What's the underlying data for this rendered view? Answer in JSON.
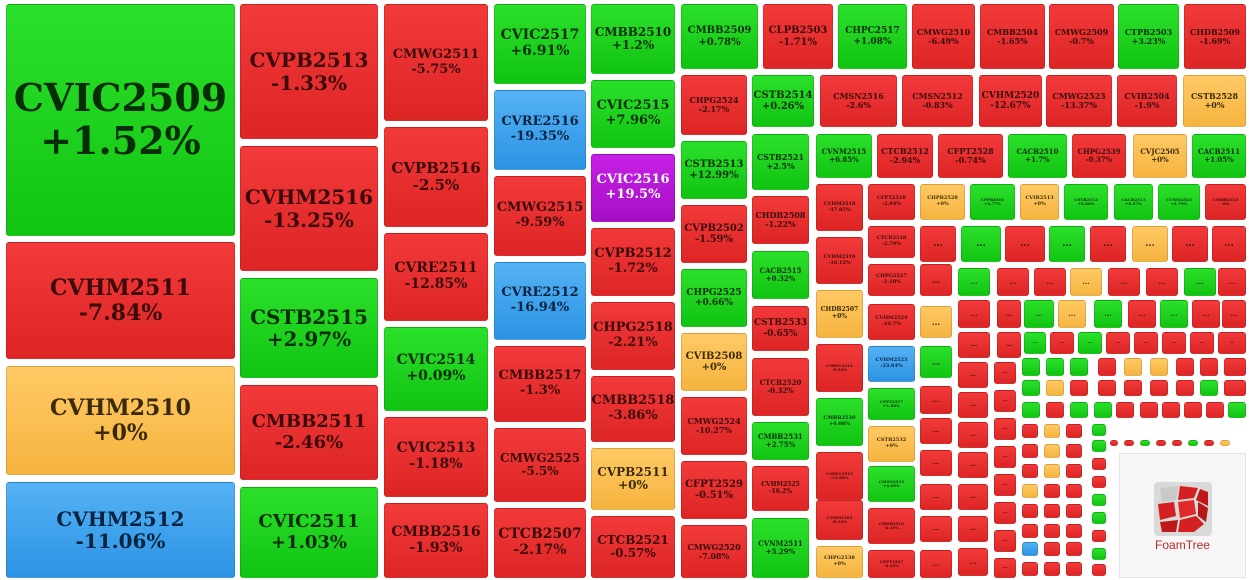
{
  "logo": {
    "text": "FoamTree"
  },
  "ellipsis": "...",
  "colors": {
    "red": "#e33030",
    "green": "#1ad01a",
    "yellow": "#fbbf52",
    "blue": "#3aa2ec",
    "purple": "#b818d6"
  },
  "cells": [
    {
      "code": "CVIC2509",
      "change": "+1.52%",
      "color": "green"
    },
    {
      "code": "CVHM2511",
      "change": "-7.84%",
      "color": "red"
    },
    {
      "code": "CVHM2510",
      "change": "+0%",
      "color": "yellow"
    },
    {
      "code": "CVHM2512",
      "change": "-11.06%",
      "color": "blue"
    },
    {
      "code": "CVPB2513",
      "change": "-1.33%",
      "color": "red"
    },
    {
      "code": "CVHM2516",
      "change": "-13.25%",
      "color": "red"
    },
    {
      "code": "CSTB2515",
      "change": "+2.97%",
      "color": "green"
    },
    {
      "code": "CMBB2511",
      "change": "-2.46%",
      "color": "red"
    },
    {
      "code": "CVIC2511",
      "change": "+1.03%",
      "color": "green"
    },
    {
      "code": "CMWG2511",
      "change": "-5.75%",
      "color": "red"
    },
    {
      "code": "CVPB2516",
      "change": "-2.5%",
      "color": "red"
    },
    {
      "code": "CVRE2511",
      "change": "-12.85%",
      "color": "red"
    },
    {
      "code": "CVIC2514",
      "change": "+0.09%",
      "color": "green"
    },
    {
      "code": "CVIC2513",
      "change": "-1.18%",
      "color": "red"
    },
    {
      "code": "CMBB2516",
      "change": "-1.93%",
      "color": "red"
    },
    {
      "code": "CVIC2517",
      "change": "+6.91%",
      "color": "green"
    },
    {
      "code": "CVRE2516",
      "change": "-19.35%",
      "color": "blue"
    },
    {
      "code": "CMWG2515",
      "change": "-9.59%",
      "color": "red"
    },
    {
      "code": "CVRE2512",
      "change": "-16.94%",
      "color": "blue"
    },
    {
      "code": "CMBB2517",
      "change": "-1.3%",
      "color": "red"
    },
    {
      "code": "CMWG2525",
      "change": "-5.5%",
      "color": "red"
    },
    {
      "code": "CTCB2507",
      "change": "-2.17%",
      "color": "red"
    },
    {
      "code": "CMBB2510",
      "change": "+1.2%",
      "color": "green"
    },
    {
      "code": "CVIC2515",
      "change": "+7.96%",
      "color": "green"
    },
    {
      "code": "CVIC2516",
      "change": "+19.5%",
      "color": "purple"
    },
    {
      "code": "CVPB2512",
      "change": "-1.72%",
      "color": "red"
    },
    {
      "code": "CHPG2518",
      "change": "-2.21%",
      "color": "red"
    },
    {
      "code": "CMBB2518",
      "change": "-3.86%",
      "color": "red"
    },
    {
      "code": "CVPB2511",
      "change": "+0%",
      "color": "yellow"
    },
    {
      "code": "CTCB2521",
      "change": "-0.57%",
      "color": "red"
    },
    {
      "code": "CMBB2509",
      "change": "+0.78%",
      "color": "green"
    },
    {
      "code": "CHPG2524",
      "change": "-2.17%",
      "color": "red"
    },
    {
      "code": "CSTB2513",
      "change": "+12.99%",
      "color": "green"
    },
    {
      "code": "CVPB2502",
      "change": "-1.59%",
      "color": "red"
    },
    {
      "code": "CHPG2525",
      "change": "+0.66%",
      "color": "green"
    },
    {
      "code": "CVIB2508",
      "change": "+0%",
      "color": "yellow"
    },
    {
      "code": "CMWG2524",
      "change": "-10.27%",
      "color": "red"
    },
    {
      "code": "CFPT2529",
      "change": "-0.51%",
      "color": "red"
    },
    {
      "code": "CMWG2520",
      "change": "-7.08%",
      "color": "red"
    },
    {
      "code": "CLPB2503",
      "change": "-1.71%",
      "color": "red"
    },
    {
      "code": "CHPC2517",
      "change": "+1.08%",
      "color": "green"
    },
    {
      "code": "CMWG2510",
      "change": "-6.49%",
      "color": "red"
    },
    {
      "code": "CMBB2504",
      "change": "-1.65%",
      "color": "red"
    },
    {
      "code": "CMWG2509",
      "change": "-0.7%",
      "color": "red"
    },
    {
      "code": "CTPB2503",
      "change": "+3.23%",
      "color": "green"
    },
    {
      "code": "CHDB2509",
      "change": "-1.69%",
      "color": "red"
    },
    {
      "code": "CSTB2514",
      "change": "+0.26%",
      "color": "green"
    },
    {
      "code": "CMSN2516",
      "change": "-2.6%",
      "color": "red"
    },
    {
      "code": "CMSN2512",
      "change": "-0.83%",
      "color": "red"
    },
    {
      "code": "CVHM2520",
      "change": "-12.67%",
      "color": "red"
    },
    {
      "code": "CMWG2523",
      "change": "-13.37%",
      "color": "red"
    },
    {
      "code": "CVIB2504",
      "change": "-1.9%",
      "color": "red"
    },
    {
      "code": "CSTB2528",
      "change": "+0%",
      "color": "yellow"
    },
    {
      "code": "CSTB2521",
      "change": "+2.5%",
      "color": "green"
    },
    {
      "code": "CVNM2515",
      "change": "+6.85%",
      "color": "green"
    },
    {
      "code": "CTCB2512",
      "change": "-2.94%",
      "color": "red"
    },
    {
      "code": "CFPT2528",
      "change": "-0.74%",
      "color": "red"
    },
    {
      "code": "CACB2510",
      "change": "+1.7%",
      "color": "green"
    },
    {
      "code": "CHPG2539",
      "change": "-0.37%",
      "color": "red"
    },
    {
      "code": "CVJC2505",
      "change": "+0%",
      "color": "yellow"
    },
    {
      "code": "CACB2511",
      "change": "+1.05%",
      "color": "green"
    },
    {
      "code": "CHDB2508",
      "change": "-1.22%",
      "color": "red"
    },
    {
      "code": "CVHM2518",
      "change": "-17.85%",
      "color": "red"
    },
    {
      "code": "CFPT2518",
      "change": "-2.94%",
      "color": "red"
    },
    {
      "code": "CHPB2528",
      "change": "+0%",
      "color": "yellow"
    },
    {
      "code": "CFPB2501",
      "change": "+2.77%",
      "color": "green"
    },
    {
      "code": "CVIB2513",
      "change": "+0%",
      "color": "yellow"
    },
    {
      "code": "CSTB2512",
      "change": "+5.66%",
      "color": "green"
    },
    {
      "code": "CACB2513",
      "change": "+6.57%",
      "color": "green"
    },
    {
      "code": "CVNM2523",
      "change": "+4.79%",
      "color": "green"
    },
    {
      "code": "CMBB2515",
      "change": "-8%",
      "color": "red"
    },
    {
      "code": "CACB2515",
      "change": "+0.32%",
      "color": "green"
    },
    {
      "code": "CVHM2519",
      "change": "-10.12%",
      "color": "red"
    },
    {
      "code": "CTCB2518",
      "change": "-2.79%",
      "color": "red"
    },
    {
      "code": "CSTB2533",
      "change": "-0.65%",
      "color": "red"
    },
    {
      "code": "CHDB2507",
      "change": "+0%",
      "color": "yellow"
    },
    {
      "code": "CHPG2527",
      "change": "-2.18%",
      "color": "red"
    },
    {
      "code": "CVHM2524",
      "change": "-14.7%",
      "color": "red"
    },
    {
      "code": "CTCB2520",
      "change": "-0.32%",
      "color": "red"
    },
    {
      "code": "CMWG2514",
      "change": "-9.54%",
      "color": "red"
    },
    {
      "code": "CVHM2523",
      "change": "-23.64%",
      "color": "blue"
    },
    {
      "code": "CMBB2531",
      "change": "+2.75%",
      "color": "green"
    },
    {
      "code": "CMBB2530",
      "change": "+4.06%",
      "color": "green"
    },
    {
      "code": "CFPT2517",
      "change": "+1.84%",
      "color": "green"
    },
    {
      "code": "CVHM2525",
      "change": "-16.2%",
      "color": "red"
    },
    {
      "code": "CMWG2513",
      "change": "-12.68%",
      "color": "red"
    },
    {
      "code": "CSTB2532",
      "change": "+0%",
      "color": "yellow"
    },
    {
      "code": "CVNM2511",
      "change": "+5.29%",
      "color": "green"
    },
    {
      "code": "CVHM2503",
      "change": "-8.34%",
      "color": "red"
    },
    {
      "code": "CMSN2513",
      "change": "+4.09%",
      "color": "green"
    },
    {
      "code": "CHPG2538",
      "change": "+0%",
      "color": "yellow"
    },
    {
      "code": "CHDB2510",
      "change": "-2.15%",
      "color": "red"
    },
    {
      "code": "CFPT2527",
      "change": "-2.45%",
      "color": "red"
    }
  ]
}
